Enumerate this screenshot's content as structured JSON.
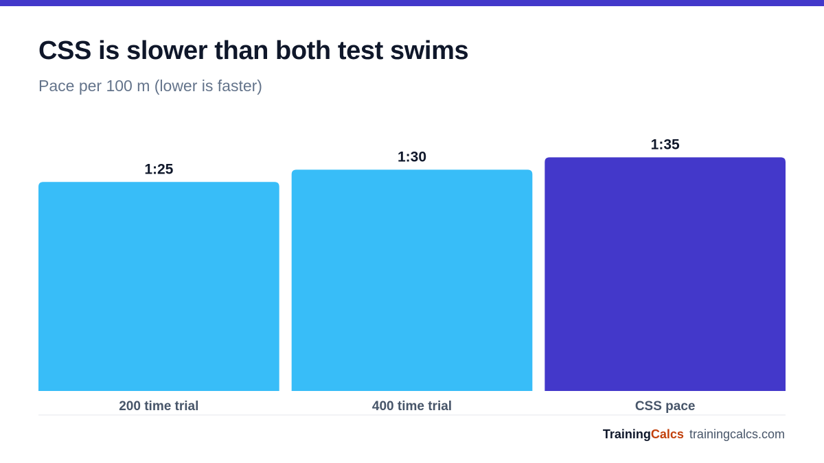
{
  "title": "CSS is slower than both test swims",
  "subtitle": "Pace per 100 m (lower is faster)",
  "colors": {
    "top_bar": "#4338ca",
    "test_bar": "#38bdf8",
    "css_bar": "#4338ca",
    "baseline": "#e5e7eb",
    "brand_training": "#0f172a",
    "brand_calcs": "#c2410c"
  },
  "chart_data": {
    "type": "bar",
    "title": "CSS is slower than both test swims",
    "subtitle": "Pace per 100 m (lower is faster)",
    "xlabel": "",
    "ylabel": "",
    "categories": [
      "200 time trial",
      "400 time trial",
      "CSS pace"
    ],
    "values": [
      85,
      90,
      95
    ],
    "value_labels": [
      "1:25",
      "1:30",
      "1:35"
    ],
    "bar_colors": [
      "#38bdf8",
      "#38bdf8",
      "#4338ca"
    ],
    "ylim": [
      0,
      106
    ],
    "grid": false,
    "legend": "none"
  },
  "footer": {
    "brand_part1": "Training",
    "brand_part2": "Calcs",
    "site": "trainingcalcs.com"
  }
}
